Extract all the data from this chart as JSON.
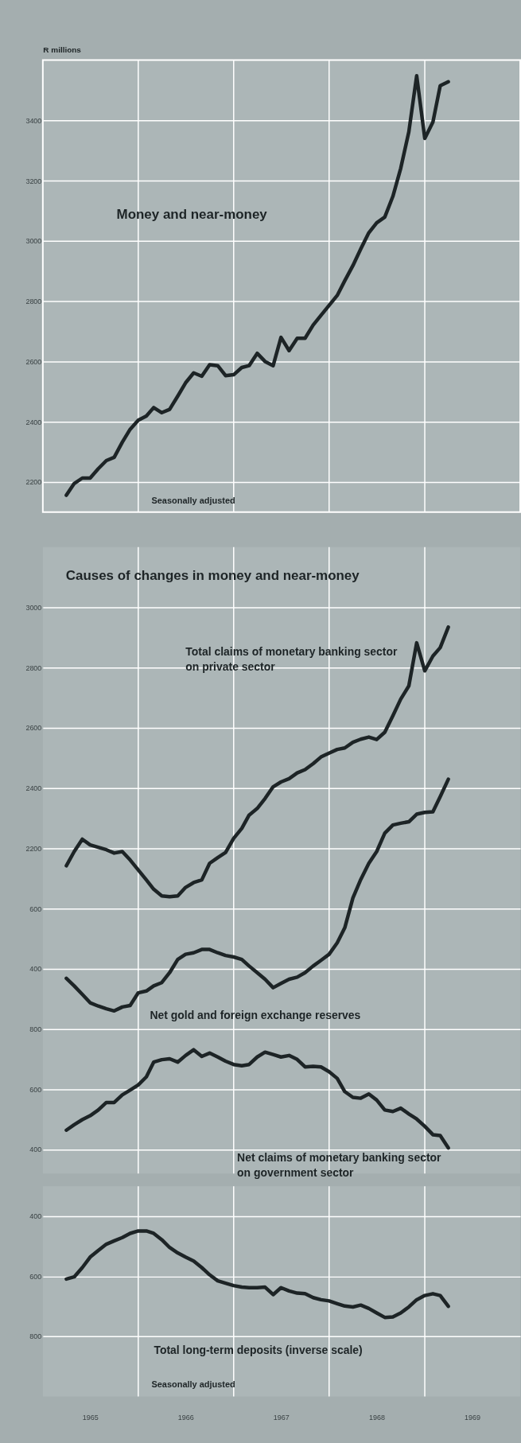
{
  "chart_data": [
    {
      "type": "line",
      "ylabel": "R millions",
      "annotations": [
        "Seasonally adjusted"
      ],
      "x": [
        "1965-04",
        "1965-05",
        "1965-06",
        "1965-07",
        "1965-08",
        "1965-09",
        "1965-10",
        "1965-11",
        "1965-12",
        "1966-01",
        "1966-02",
        "1966-03",
        "1966-04",
        "1966-05",
        "1966-06",
        "1966-07",
        "1966-08",
        "1966-09",
        "1966-10",
        "1966-11",
        "1966-12",
        "1967-01",
        "1967-02",
        "1967-03",
        "1967-04",
        "1967-05",
        "1967-06",
        "1967-07",
        "1967-08",
        "1967-09",
        "1967-10",
        "1967-11",
        "1967-12",
        "1968-01",
        "1968-02",
        "1968-03",
        "1968-04",
        "1968-05",
        "1968-06",
        "1968-07",
        "1968-08",
        "1968-09",
        "1968-10",
        "1968-11",
        "1968-12",
        "1969-01",
        "1969-02",
        "1969-03",
        "1969-04"
      ],
      "series": [
        {
          "name": "Money and near-money",
          "color": "#1d2426",
          "values": [
            2156,
            2195,
            2213,
            2213,
            2244,
            2271,
            2282,
            2332,
            2375,
            2405,
            2419,
            2447,
            2430,
            2441,
            2485,
            2529,
            2562,
            2551,
            2589,
            2586,
            2553,
            2556,
            2580,
            2586,
            2627,
            2600,
            2586,
            2680,
            2636,
            2677,
            2677,
            2721,
            2753,
            2786,
            2819,
            2868,
            2918,
            2973,
            3027,
            3060,
            3079,
            3148,
            3241,
            3362,
            3548,
            3340,
            3394,
            3515,
            3528
          ]
        }
      ],
      "xlim": [
        "1965-01",
        "1970-01"
      ],
      "xticks": [
        {
          "value": "1966-01",
          "label": null
        },
        {
          "value": "1967-01",
          "label": null
        },
        {
          "value": "1968-01",
          "label": null
        },
        {
          "value": "1969-01",
          "label": null
        }
      ],
      "ylim": [
        2100,
        3600
      ],
      "yticks": [
        2200,
        2400,
        2600,
        2800,
        3000,
        3200,
        3400
      ],
      "grid": true,
      "tick_labels": "y"
    },
    {
      "type": "line",
      "title": "Causes of changes in money and near-money",
      "x": [
        "1965-04",
        "1965-05",
        "1965-06",
        "1965-07",
        "1965-08",
        "1965-09",
        "1965-10",
        "1965-11",
        "1965-12",
        "1966-01",
        "1966-02",
        "1966-03",
        "1966-04",
        "1966-05",
        "1966-06",
        "1966-07",
        "1966-08",
        "1966-09",
        "1966-10",
        "1966-11",
        "1966-12",
        "1967-01",
        "1967-02",
        "1967-03",
        "1967-04",
        "1967-05",
        "1967-06",
        "1967-07",
        "1967-08",
        "1967-09",
        "1967-10",
        "1967-11",
        "1967-12",
        "1968-01",
        "1968-02",
        "1968-03",
        "1968-04",
        "1968-05",
        "1968-06",
        "1968-07",
        "1968-08",
        "1968-09",
        "1968-10",
        "1968-11",
        "1968-12",
        "1969-01",
        "1969-02",
        "1969-03",
        "1969-04"
      ],
      "series": [
        {
          "name": "Total claims of monetary banking sector on private sector",
          "color": "#1d2426",
          "axis": "y",
          "values": [
            2142,
            2189,
            2230,
            2211,
            2203,
            2195,
            2184,
            2189,
            2161,
            2128,
            2095,
            2064,
            2042,
            2039,
            2042,
            2070,
            2086,
            2095,
            2150,
            2169,
            2186,
            2233,
            2266,
            2310,
            2332,
            2365,
            2404,
            2420,
            2431,
            2450,
            2461,
            2481,
            2503,
            2516,
            2528,
            2533,
            2552,
            2562,
            2569,
            2561,
            2585,
            2640,
            2695,
            2739,
            2882,
            2789,
            2838,
            2866,
            2934
          ]
        },
        {
          "name": "Net gold and foreign exchange reserves",
          "color": "#1d2426",
          "axis": "y2",
          "values": [
            368,
            343,
            315,
            287,
            276,
            267,
            260,
            273,
            278,
            320,
            326,
            343,
            354,
            387,
            431,
            448,
            453,
            464,
            464,
            453,
            444,
            439,
            431,
            409,
            387,
            365,
            337,
            351,
            365,
            372,
            387,
            409,
            428,
            448,
            486,
            536,
            635,
            696,
            750,
            789,
            850,
            877,
            883,
            888,
            913,
            919,
            921,
            971,
            1029
          ]
        },
        {
          "name": "Net claims of monetary banking sector on government sector",
          "color": "#1d2426",
          "axis": "y3",
          "values": [
            464,
            482,
            499,
            512,
            531,
            556,
            556,
            581,
            597,
            614,
            641,
            690,
            698,
            701,
            690,
            712,
            731,
            709,
            720,
            707,
            693,
            682,
            678,
            682,
            707,
            723,
            715,
            707,
            712,
            699,
            674,
            676,
            674,
            658,
            636,
            592,
            573,
            570,
            584,
            564,
            531,
            526,
            537,
            518,
            501,
            477,
            449,
            446,
            405
          ]
        }
      ],
      "xlim": [
        "1965-01",
        "1970-01"
      ],
      "xticks": [
        {
          "value": "1966-01",
          "label": null
        },
        {
          "value": "1967-01",
          "label": null
        },
        {
          "value": "1968-01",
          "label": null
        },
        {
          "value": "1969-01",
          "label": null
        }
      ],
      "ylim": [
        1120,
        3200
      ],
      "yticks": [
        2200,
        2400,
        2600,
        2800,
        3000
      ],
      "y2lim": [
        -280,
        1800
      ],
      "y2ticks": [
        400,
        600
      ],
      "y3lim": [
        320,
        2400
      ],
      "y3ticks": [
        400,
        600,
        800
      ],
      "grid": true,
      "tick_labels": "y"
    },
    {
      "type": "line",
      "annotations": [
        "Seasonally adjusted"
      ],
      "x": [
        "1965-04",
        "1965-05",
        "1965-06",
        "1965-07",
        "1965-08",
        "1965-09",
        "1965-10",
        "1965-11",
        "1965-12",
        "1966-01",
        "1966-02",
        "1966-03",
        "1966-04",
        "1966-05",
        "1966-06",
        "1966-07",
        "1966-08",
        "1966-09",
        "1966-10",
        "1966-11",
        "1966-12",
        "1967-01",
        "1967-02",
        "1967-03",
        "1967-04",
        "1967-05",
        "1967-06",
        "1967-07",
        "1967-08",
        "1967-09",
        "1967-10",
        "1967-11",
        "1967-12",
        "1968-01",
        "1968-02",
        "1968-03",
        "1968-04",
        "1968-05",
        "1968-06",
        "1968-07",
        "1968-08",
        "1968-09",
        "1968-10",
        "1968-11",
        "1968-12",
        "1969-01",
        "1969-02",
        "1969-03",
        "1969-04"
      ],
      "series": [
        {
          "name": "Total long-term deposits (inverse scale)",
          "color": "#1d2426",
          "values": [
            609,
            602,
            571,
            536,
            514,
            493,
            482,
            471,
            457,
            449,
            449,
            457,
            478,
            504,
            522,
            536,
            549,
            571,
            595,
            615,
            623,
            631,
            636,
            638,
            638,
            636,
            661,
            638,
            649,
            656,
            658,
            671,
            678,
            682,
            691,
            699,
            702,
            696,
            707,
            722,
            737,
            735,
            722,
            702,
            678,
            664,
            658,
            664,
            700
          ]
        }
      ],
      "xlim": [
        "1965-01",
        "1970-01"
      ],
      "xticks": [
        {
          "value": "1965-07",
          "label": "1965"
        },
        {
          "value": "1966-07",
          "label": "1966"
        },
        {
          "value": "1967-07",
          "label": "1967"
        },
        {
          "value": "1968-07",
          "label": "1968"
        },
        {
          "value": "1969-07",
          "label": "1969"
        },
        {
          "value": "1966-01",
          "label": null
        },
        {
          "value": "1967-01",
          "label": null
        },
        {
          "value": "1968-01",
          "label": null
        },
        {
          "value": "1969-01",
          "label": null
        }
      ],
      "ylim": [
        1000,
        300
      ],
      "yticks": [
        400,
        600,
        800
      ],
      "grid": true
    }
  ]
}
